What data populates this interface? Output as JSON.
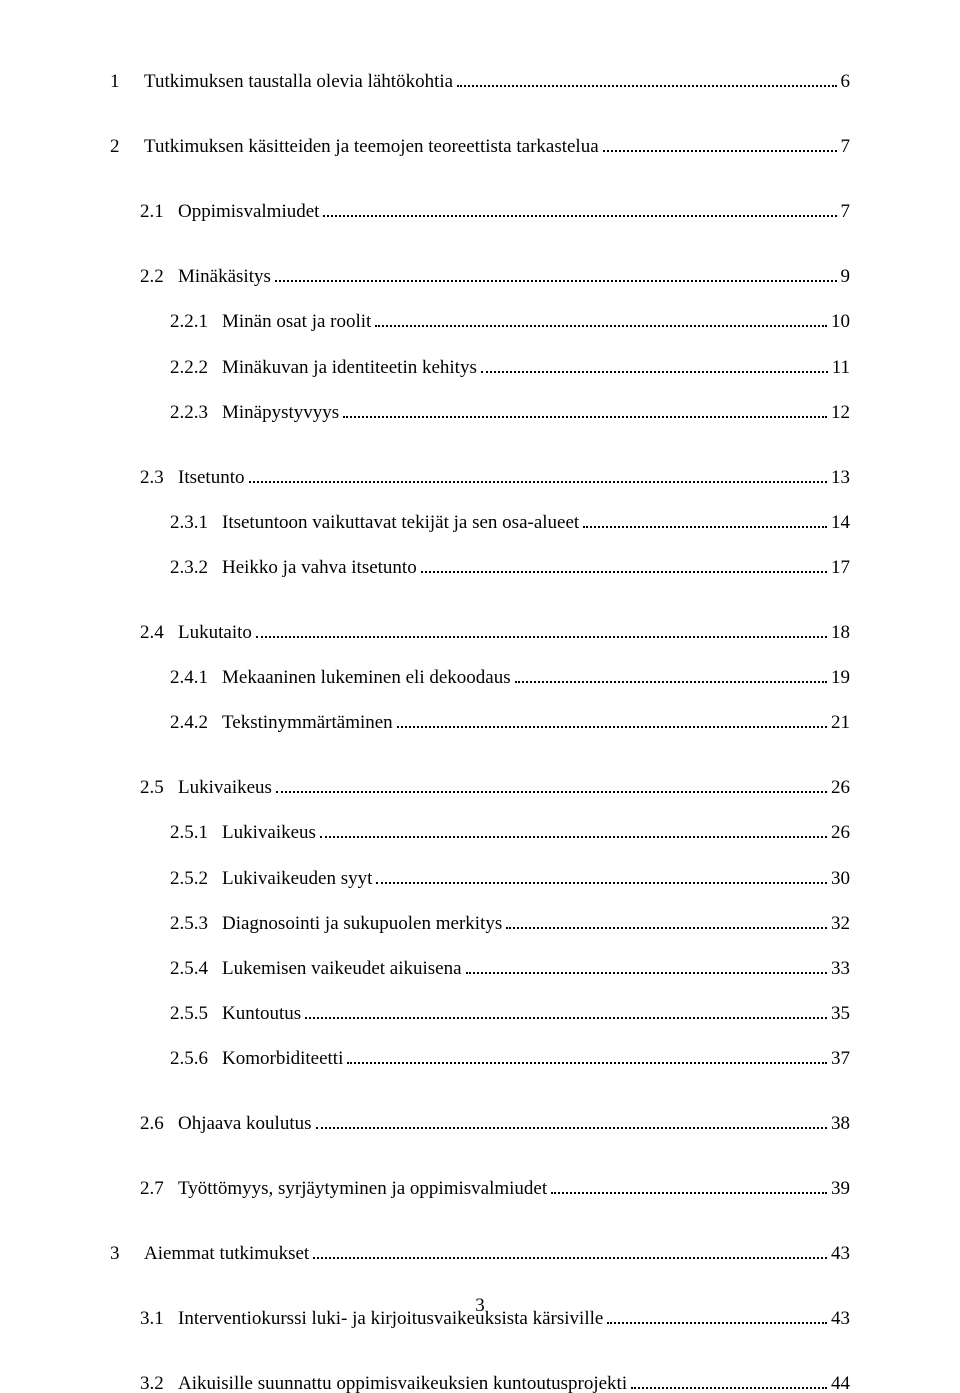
{
  "toc": [
    {
      "group": [
        {
          "level": 0,
          "num": "1",
          "text": "Tutkimuksen taustalla olevia lähtökohtia",
          "page": "6"
        }
      ]
    },
    {
      "group": [
        {
          "level": 0,
          "num": "2",
          "text": "Tutkimuksen käsitteiden ja teemojen teoreettista tarkastelua",
          "page": "7"
        }
      ]
    },
    {
      "group": [
        {
          "level": 1,
          "num": "2.1",
          "text": "Oppimisvalmiudet",
          "page": "7"
        }
      ]
    },
    {
      "group": [
        {
          "level": 1,
          "num": "2.2",
          "text": "Minäkäsitys",
          "page": "9"
        },
        {
          "level": 2,
          "num": "2.2.1",
          "text": "Minän osat ja roolit",
          "page": "10"
        },
        {
          "level": 2,
          "num": "2.2.2",
          "text": "Minäkuvan ja identiteetin kehitys",
          "page": "11"
        },
        {
          "level": 2,
          "num": "2.2.3",
          "text": "Minäpystyvyys",
          "page": "12"
        }
      ]
    },
    {
      "group": [
        {
          "level": 1,
          "num": "2.3",
          "text": "Itsetunto",
          "page": "13"
        },
        {
          "level": 2,
          "num": "2.3.1",
          "text": "Itsetuntoon vaikuttavat tekijät ja sen osa-alueet",
          "page": "14"
        },
        {
          "level": 2,
          "num": "2.3.2",
          "text": "Heikko ja vahva itsetunto",
          "page": "17"
        }
      ]
    },
    {
      "group": [
        {
          "level": 1,
          "num": "2.4",
          "text": "Lukutaito",
          "page": "18"
        },
        {
          "level": 2,
          "num": "2.4.1",
          "text": "Mekaaninen lukeminen eli dekoodaus",
          "page": "19"
        },
        {
          "level": 2,
          "num": "2.4.2",
          "text": "Tekstinymmärtäminen",
          "page": "21"
        }
      ]
    },
    {
      "group": [
        {
          "level": 1,
          "num": "2.5",
          "text": "Lukivaikeus",
          "page": "26"
        },
        {
          "level": 2,
          "num": "2.5.1",
          "text": "Lukivaikeus",
          "page": "26"
        },
        {
          "level": 2,
          "num": "2.5.2",
          "text": "Lukivaikeuden syyt",
          "page": "30"
        },
        {
          "level": 2,
          "num": "2.5.3",
          "text": "Diagnosointi ja sukupuolen merkitys",
          "page": "32"
        },
        {
          "level": 2,
          "num": "2.5.4",
          "text": "Lukemisen vaikeudet aikuisena",
          "page": "33"
        },
        {
          "level": 2,
          "num": "2.5.5",
          "text": "Kuntoutus",
          "page": "35"
        },
        {
          "level": 2,
          "num": "2.5.6",
          "text": "Komorbiditeetti",
          "page": "37"
        }
      ]
    },
    {
      "group": [
        {
          "level": 1,
          "num": "2.6",
          "text": "Ohjaava koulutus",
          "page": "38"
        }
      ]
    },
    {
      "group": [
        {
          "level": 1,
          "num": "2.7",
          "text": "Työttömyys, syrjäytyminen ja oppimisvalmiudet",
          "page": "39"
        }
      ]
    },
    {
      "group": [
        {
          "level": 0,
          "num": "3",
          "text": "Aiemmat tutkimukset",
          "page": "43"
        }
      ]
    },
    {
      "group": [
        {
          "level": 1,
          "num": "3.1",
          "text": "Interventiokurssi luki- ja kirjoitusvaikeuksista kärsiville",
          "page": "43"
        }
      ]
    },
    {
      "group": [
        {
          "level": 1,
          "num": "3.2",
          "text": "Aikuisille suunnattu oppimisvaikeuksien kuntoutusprojekti",
          "page": "44"
        }
      ]
    }
  ],
  "footer_page": "3"
}
